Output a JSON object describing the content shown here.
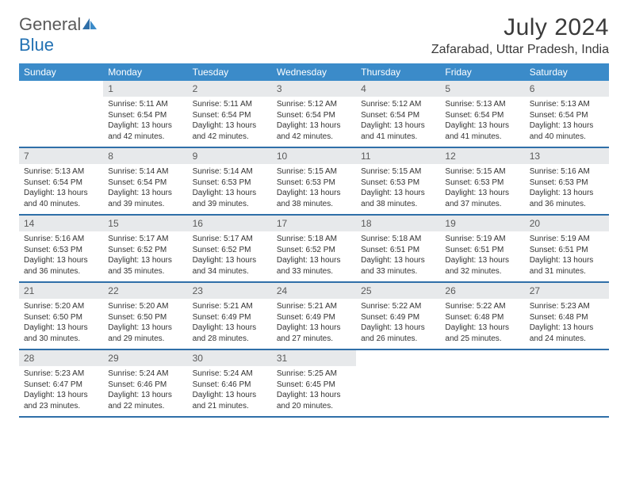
{
  "brand": {
    "part1": "General",
    "part2": "Blue"
  },
  "title": "July 2024",
  "location": "Zafarabad, Uttar Pradesh, India",
  "colors": {
    "header_bg": "#3b8bc9",
    "row_border": "#2f6fa8",
    "daynum_bg": "#e7e9eb",
    "text": "#333333",
    "logo_gray": "#5a5a5a",
    "logo_blue": "#2271b3"
  },
  "weekdays": [
    "Sunday",
    "Monday",
    "Tuesday",
    "Wednesday",
    "Thursday",
    "Friday",
    "Saturday"
  ],
  "weeks": [
    [
      {
        "empty": true
      },
      {
        "num": "1",
        "sunrise": "Sunrise: 5:11 AM",
        "sunset": "Sunset: 6:54 PM",
        "daylight": "Daylight: 13 hours and 42 minutes."
      },
      {
        "num": "2",
        "sunrise": "Sunrise: 5:11 AM",
        "sunset": "Sunset: 6:54 PM",
        "daylight": "Daylight: 13 hours and 42 minutes."
      },
      {
        "num": "3",
        "sunrise": "Sunrise: 5:12 AM",
        "sunset": "Sunset: 6:54 PM",
        "daylight": "Daylight: 13 hours and 42 minutes."
      },
      {
        "num": "4",
        "sunrise": "Sunrise: 5:12 AM",
        "sunset": "Sunset: 6:54 PM",
        "daylight": "Daylight: 13 hours and 41 minutes."
      },
      {
        "num": "5",
        "sunrise": "Sunrise: 5:13 AM",
        "sunset": "Sunset: 6:54 PM",
        "daylight": "Daylight: 13 hours and 41 minutes."
      },
      {
        "num": "6",
        "sunrise": "Sunrise: 5:13 AM",
        "sunset": "Sunset: 6:54 PM",
        "daylight": "Daylight: 13 hours and 40 minutes."
      }
    ],
    [
      {
        "num": "7",
        "sunrise": "Sunrise: 5:13 AM",
        "sunset": "Sunset: 6:54 PM",
        "daylight": "Daylight: 13 hours and 40 minutes."
      },
      {
        "num": "8",
        "sunrise": "Sunrise: 5:14 AM",
        "sunset": "Sunset: 6:54 PM",
        "daylight": "Daylight: 13 hours and 39 minutes."
      },
      {
        "num": "9",
        "sunrise": "Sunrise: 5:14 AM",
        "sunset": "Sunset: 6:53 PM",
        "daylight": "Daylight: 13 hours and 39 minutes."
      },
      {
        "num": "10",
        "sunrise": "Sunrise: 5:15 AM",
        "sunset": "Sunset: 6:53 PM",
        "daylight": "Daylight: 13 hours and 38 minutes."
      },
      {
        "num": "11",
        "sunrise": "Sunrise: 5:15 AM",
        "sunset": "Sunset: 6:53 PM",
        "daylight": "Daylight: 13 hours and 38 minutes."
      },
      {
        "num": "12",
        "sunrise": "Sunrise: 5:15 AM",
        "sunset": "Sunset: 6:53 PM",
        "daylight": "Daylight: 13 hours and 37 minutes."
      },
      {
        "num": "13",
        "sunrise": "Sunrise: 5:16 AM",
        "sunset": "Sunset: 6:53 PM",
        "daylight": "Daylight: 13 hours and 36 minutes."
      }
    ],
    [
      {
        "num": "14",
        "sunrise": "Sunrise: 5:16 AM",
        "sunset": "Sunset: 6:53 PM",
        "daylight": "Daylight: 13 hours and 36 minutes."
      },
      {
        "num": "15",
        "sunrise": "Sunrise: 5:17 AM",
        "sunset": "Sunset: 6:52 PM",
        "daylight": "Daylight: 13 hours and 35 minutes."
      },
      {
        "num": "16",
        "sunrise": "Sunrise: 5:17 AM",
        "sunset": "Sunset: 6:52 PM",
        "daylight": "Daylight: 13 hours and 34 minutes."
      },
      {
        "num": "17",
        "sunrise": "Sunrise: 5:18 AM",
        "sunset": "Sunset: 6:52 PM",
        "daylight": "Daylight: 13 hours and 33 minutes."
      },
      {
        "num": "18",
        "sunrise": "Sunrise: 5:18 AM",
        "sunset": "Sunset: 6:51 PM",
        "daylight": "Daylight: 13 hours and 33 minutes."
      },
      {
        "num": "19",
        "sunrise": "Sunrise: 5:19 AM",
        "sunset": "Sunset: 6:51 PM",
        "daylight": "Daylight: 13 hours and 32 minutes."
      },
      {
        "num": "20",
        "sunrise": "Sunrise: 5:19 AM",
        "sunset": "Sunset: 6:51 PM",
        "daylight": "Daylight: 13 hours and 31 minutes."
      }
    ],
    [
      {
        "num": "21",
        "sunrise": "Sunrise: 5:20 AM",
        "sunset": "Sunset: 6:50 PM",
        "daylight": "Daylight: 13 hours and 30 minutes."
      },
      {
        "num": "22",
        "sunrise": "Sunrise: 5:20 AM",
        "sunset": "Sunset: 6:50 PM",
        "daylight": "Daylight: 13 hours and 29 minutes."
      },
      {
        "num": "23",
        "sunrise": "Sunrise: 5:21 AM",
        "sunset": "Sunset: 6:49 PM",
        "daylight": "Daylight: 13 hours and 28 minutes."
      },
      {
        "num": "24",
        "sunrise": "Sunrise: 5:21 AM",
        "sunset": "Sunset: 6:49 PM",
        "daylight": "Daylight: 13 hours and 27 minutes."
      },
      {
        "num": "25",
        "sunrise": "Sunrise: 5:22 AM",
        "sunset": "Sunset: 6:49 PM",
        "daylight": "Daylight: 13 hours and 26 minutes."
      },
      {
        "num": "26",
        "sunrise": "Sunrise: 5:22 AM",
        "sunset": "Sunset: 6:48 PM",
        "daylight": "Daylight: 13 hours and 25 minutes."
      },
      {
        "num": "27",
        "sunrise": "Sunrise: 5:23 AM",
        "sunset": "Sunset: 6:48 PM",
        "daylight": "Daylight: 13 hours and 24 minutes."
      }
    ],
    [
      {
        "num": "28",
        "sunrise": "Sunrise: 5:23 AM",
        "sunset": "Sunset: 6:47 PM",
        "daylight": "Daylight: 13 hours and 23 minutes."
      },
      {
        "num": "29",
        "sunrise": "Sunrise: 5:24 AM",
        "sunset": "Sunset: 6:46 PM",
        "daylight": "Daylight: 13 hours and 22 minutes."
      },
      {
        "num": "30",
        "sunrise": "Sunrise: 5:24 AM",
        "sunset": "Sunset: 6:46 PM",
        "daylight": "Daylight: 13 hours and 21 minutes."
      },
      {
        "num": "31",
        "sunrise": "Sunrise: 5:25 AM",
        "sunset": "Sunset: 6:45 PM",
        "daylight": "Daylight: 13 hours and 20 minutes."
      },
      {
        "empty": true
      },
      {
        "empty": true
      },
      {
        "empty": true
      }
    ]
  ]
}
